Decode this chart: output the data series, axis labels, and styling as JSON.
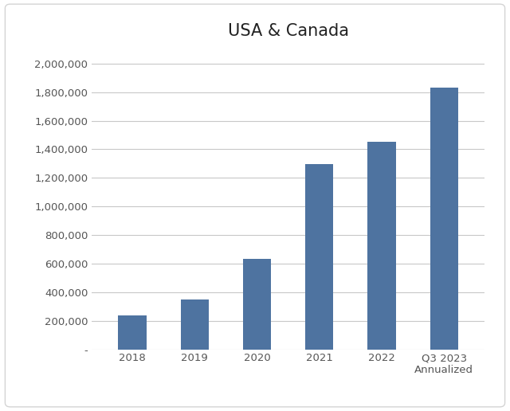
{
  "title": "USA & Canada",
  "categories": [
    "2018",
    "2019",
    "2020",
    "2021",
    "2022",
    "Q3 2023\nAnnualized"
  ],
  "values": [
    235000,
    350000,
    635000,
    1295000,
    1455000,
    1830000
  ],
  "bar_color": "#4e73a0",
  "ylim": [
    0,
    2100000
  ],
  "yticks": [
    0,
    200000,
    400000,
    600000,
    800000,
    1000000,
    1200000,
    1400000,
    1600000,
    1800000,
    2000000
  ],
  "ytick_labels": [
    "-",
    "200,000",
    "400,000",
    "600,000",
    "800,000",
    "1,000,000",
    "1,200,000",
    "1,400,000",
    "1,600,000",
    "1,800,000",
    "2,000,000"
  ],
  "background_color": "#ffffff",
  "outer_box_color": "#d4d4d4",
  "grid_color": "#c8c8c8",
  "title_fontsize": 15,
  "tick_fontsize": 9.5,
  "bar_width": 0.45
}
